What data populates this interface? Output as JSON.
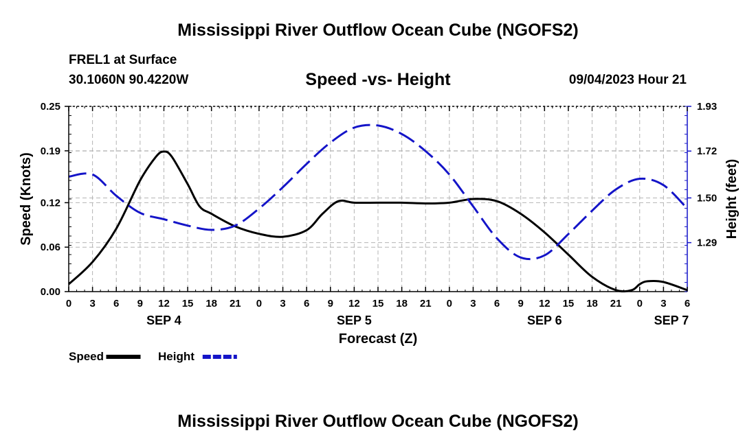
{
  "header": {
    "title": "Mississippi River Outflow Ocean Cube (NGOFS2)",
    "station": "FREL1 at Surface",
    "coordinates": "30.1060N  90.4220W",
    "subtitle": "Speed -vs- Height",
    "datetime": "09/04/2023 Hour 21"
  },
  "footer": {
    "title": "Mississippi River Outflow Ocean Cube (NGOFS2)"
  },
  "chart_data": {
    "type": "line",
    "title": "Speed -vs- Height",
    "xlabel": "Forecast (Z)",
    "ylabel": "Speed (Knots)",
    "y2label": "Height (feet)",
    "x_unit": "hours from SEP 4 00Z",
    "xlim": [
      0,
      78
    ],
    "ylim": [
      0.0,
      0.25
    ],
    "y2lim": [
      1.06,
      1.93
    ],
    "x_ticks": [
      0,
      3,
      6,
      9,
      12,
      15,
      18,
      21,
      24,
      27,
      30,
      33,
      36,
      39,
      42,
      45,
      48,
      51,
      54,
      57,
      60,
      63,
      66,
      69,
      72,
      75,
      78
    ],
    "x_tick_labels": [
      "0",
      "3",
      "6",
      "9",
      "12",
      "15",
      "18",
      "21",
      "0",
      "3",
      "6",
      "9",
      "12",
      "15",
      "18",
      "21",
      "0",
      "3",
      "6",
      "9",
      "12",
      "15",
      "18",
      "21",
      "0",
      "3",
      "6"
    ],
    "day_labels": [
      {
        "x": 12,
        "label": "SEP 4"
      },
      {
        "x": 36,
        "label": "SEP 5"
      },
      {
        "x": 60,
        "label": "SEP 6"
      },
      {
        "x": 76,
        "label": "SEP 7"
      }
    ],
    "y_ticks": [
      0.0,
      0.06,
      0.12,
      0.19,
      0.25
    ],
    "y_tick_labels": [
      "0.00",
      "0.06",
      "0.12",
      "0.19",
      "0.25"
    ],
    "y2_ticks": [
      1.29,
      1.5,
      1.72,
      1.93
    ],
    "y2_tick_labels": [
      "1.29",
      "1.50",
      "1.72",
      "1.93"
    ],
    "grid": true,
    "legend": [
      {
        "name": "Speed",
        "color": "#000000",
        "style": "solid"
      },
      {
        "name": "Height",
        "color": "#1414c8",
        "style": "dashed"
      }
    ],
    "series": [
      {
        "name": "Speed",
        "axis": "left",
        "color": "#000000",
        "style": "solid",
        "x": [
          0,
          3,
          6,
          9,
          11,
          12,
          13,
          15,
          16.5,
          18,
          21,
          24,
          27,
          30,
          32,
          34,
          36,
          39,
          42,
          45,
          48,
          51,
          54,
          57,
          60,
          63,
          66,
          69,
          71,
          72,
          73,
          75,
          78
        ],
        "values": [
          0.01,
          0.04,
          0.085,
          0.15,
          0.182,
          0.189,
          0.182,
          0.145,
          0.115,
          0.105,
          0.088,
          0.078,
          0.074,
          0.083,
          0.105,
          0.122,
          0.12,
          0.12,
          0.12,
          0.119,
          0.12,
          0.125,
          0.122,
          0.105,
          0.08,
          0.05,
          0.02,
          0.002,
          0.002,
          0.01,
          0.014,
          0.013,
          0.002
        ]
      },
      {
        "name": "Height",
        "axis": "right",
        "color": "#1414c8",
        "style": "dashed",
        "x": [
          0,
          3,
          6,
          9,
          12,
          15,
          18,
          21,
          24,
          27,
          30,
          33,
          36,
          39,
          42,
          45,
          48,
          51,
          54,
          57,
          60,
          63,
          66,
          69,
          72,
          75,
          78
        ],
        "values": [
          1.6,
          1.61,
          1.51,
          1.43,
          1.4,
          1.37,
          1.35,
          1.37,
          1.45,
          1.55,
          1.66,
          1.76,
          1.83,
          1.84,
          1.8,
          1.72,
          1.61,
          1.46,
          1.31,
          1.22,
          1.23,
          1.33,
          1.44,
          1.54,
          1.59,
          1.56,
          1.45
        ]
      }
    ]
  }
}
